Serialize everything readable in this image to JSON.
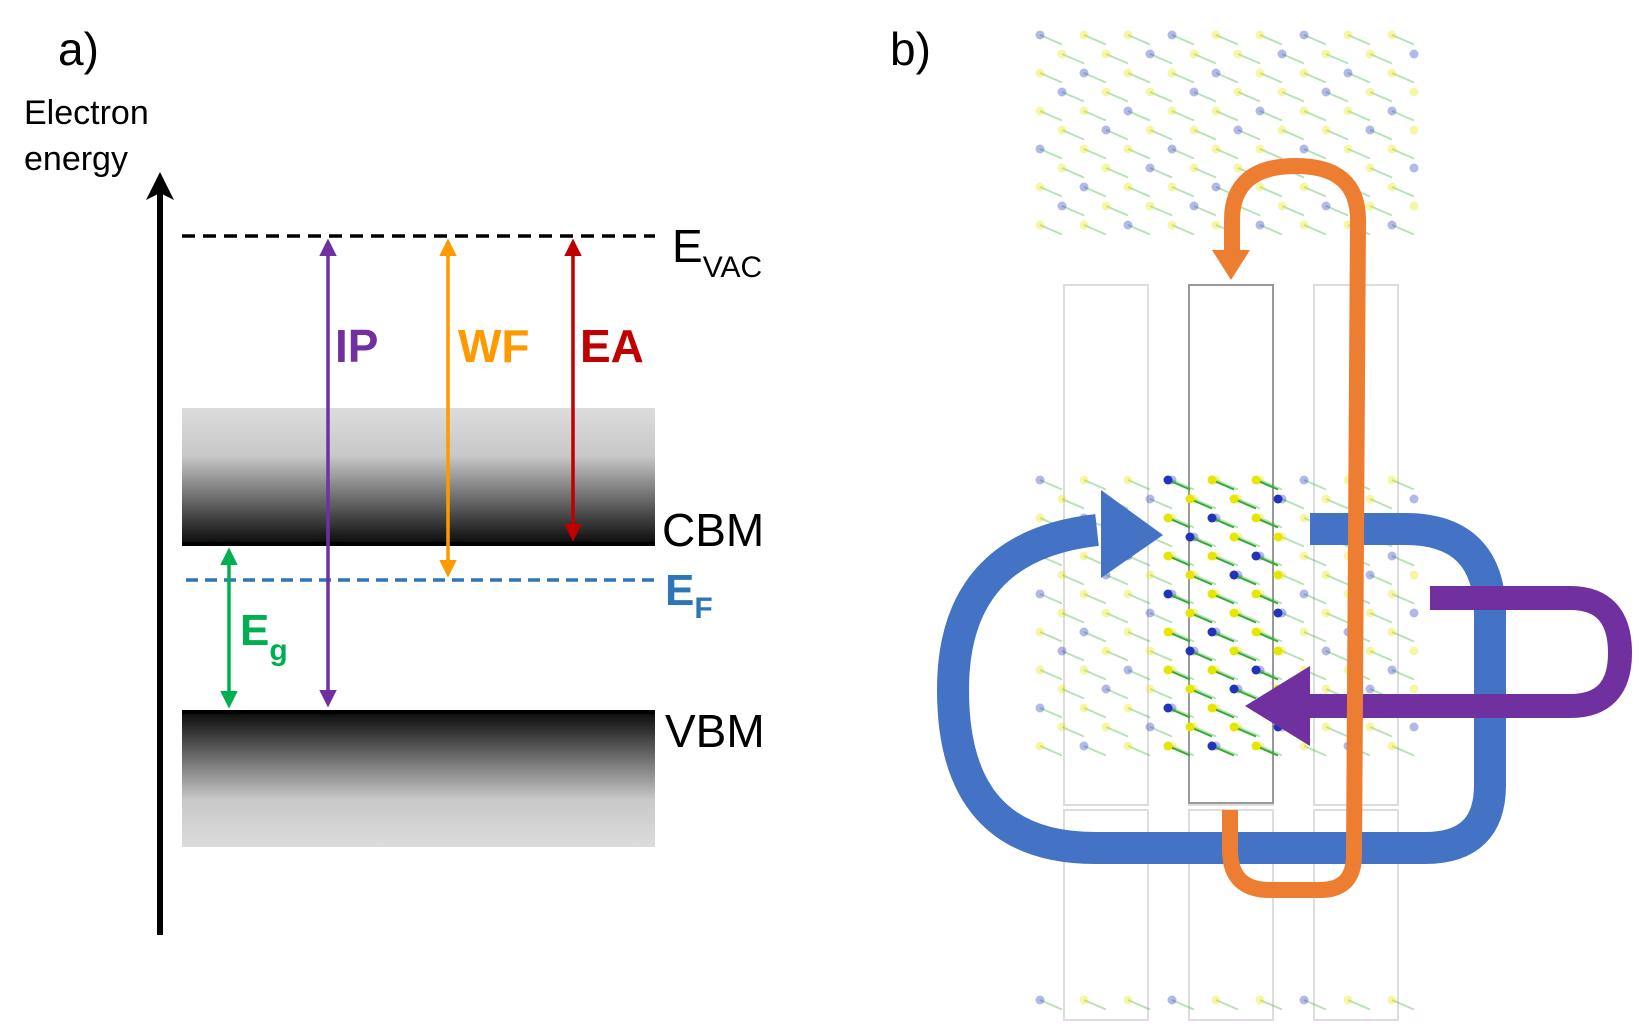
{
  "panel_a": {
    "label": "a)",
    "axis_label_line1": "Electron",
    "axis_label_line2": "energy",
    "levels": {
      "evac": {
        "main": "E",
        "sub": "VAC"
      },
      "cbm": "CBM",
      "ef": {
        "main": "E",
        "sub": "F"
      },
      "vbm": "VBM"
    },
    "arrows": {
      "ip": "IP",
      "wf": "WF",
      "ea": "EA",
      "eg": {
        "main": "E",
        "sub": "g"
      }
    },
    "colors": {
      "ip": "#7030A0",
      "wf": "#FF9900",
      "ea": "#C00000",
      "eg": "#00B050",
      "ef": "#2E75B6",
      "evac": "#000000"
    }
  },
  "panel_b": {
    "label": "b)",
    "colors": {
      "blue_loop": "#4472C4",
      "orange_loop": "#ED7D31",
      "purple_loop": "#7030A0",
      "atom_yellow": "#E6E600",
      "atom_blue": "#2233BB",
      "atom_green": "#33AA33"
    }
  }
}
